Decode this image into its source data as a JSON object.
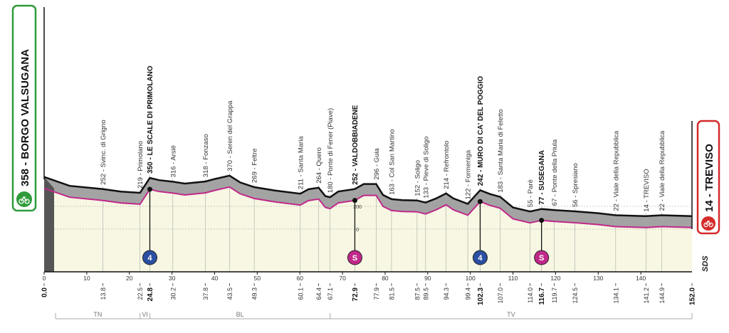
{
  "chart_data": {
    "type": "area",
    "start": {
      "label": "358 - BORGO VALSUGANA",
      "km": 0.0,
      "color": "#2e9c3a"
    },
    "finish": {
      "label": "14 - TREVISO",
      "km": 152.0,
      "color": "#d42b2b"
    },
    "xlim": [
      0,
      152
    ],
    "x_ticks": [
      0,
      10,
      20,
      30,
      40,
      50,
      60,
      70,
      80,
      90,
      100,
      110,
      120,
      130,
      140
    ],
    "altitude_marks": [
      "200",
      "0"
    ],
    "profile": [
      {
        "km": 0,
        "alt": 358
      },
      {
        "km": 6,
        "alt": 280
      },
      {
        "km": 13.8,
        "alt": 252
      },
      {
        "km": 18,
        "alt": 230
      },
      {
        "km": 22.5,
        "alt": 219
      },
      {
        "km": 24.8,
        "alt": 350
      },
      {
        "km": 27,
        "alt": 330
      },
      {
        "km": 30.2,
        "alt": 316
      },
      {
        "km": 33,
        "alt": 300
      },
      {
        "km": 37.8,
        "alt": 318
      },
      {
        "km": 40,
        "alt": 340
      },
      {
        "km": 43.5,
        "alt": 370
      },
      {
        "km": 46,
        "alt": 310
      },
      {
        "km": 49.3,
        "alt": 269
      },
      {
        "km": 54,
        "alt": 240
      },
      {
        "km": 60.1,
        "alt": 211
      },
      {
        "km": 62,
        "alt": 250
      },
      {
        "km": 64.4,
        "alt": 264
      },
      {
        "km": 66,
        "alt": 190
      },
      {
        "km": 67.1,
        "alt": 180
      },
      {
        "km": 69,
        "alt": 230
      },
      {
        "km": 72.9,
        "alt": 252
      },
      {
        "km": 75,
        "alt": 296
      },
      {
        "km": 77.9,
        "alt": 296
      },
      {
        "km": 79.5,
        "alt": 200
      },
      {
        "km": 81.5,
        "alt": 163
      },
      {
        "km": 84,
        "alt": 155
      },
      {
        "km": 87.5,
        "alt": 152
      },
      {
        "km": 89.5,
        "alt": 133
      },
      {
        "km": 92,
        "alt": 170
      },
      {
        "km": 94.3,
        "alt": 214
      },
      {
        "km": 96,
        "alt": 170
      },
      {
        "km": 99.4,
        "alt": 122
      },
      {
        "km": 102.3,
        "alt": 242
      },
      {
        "km": 104.5,
        "alt": 210
      },
      {
        "km": 107.0,
        "alt": 183
      },
      {
        "km": 110,
        "alt": 90
      },
      {
        "km": 114.0,
        "alt": 55
      },
      {
        "km": 116.7,
        "alt": 77
      },
      {
        "km": 119.7,
        "alt": 67
      },
      {
        "km": 124.5,
        "alt": 56
      },
      {
        "km": 130,
        "alt": 40
      },
      {
        "km": 134.1,
        "alt": 22
      },
      {
        "km": 141.2,
        "alt": 14
      },
      {
        "km": 144.9,
        "alt": 22
      },
      {
        "km": 152,
        "alt": 14
      }
    ],
    "waypoints": [
      {
        "km": 13.8,
        "label": "252 - Svinc. di Grigno",
        "bold": false
      },
      {
        "km": 22.5,
        "label": "219 - Primolano",
        "bold": false
      },
      {
        "km": 24.8,
        "label": "350 - LE SCALE DI PRIMOLANO",
        "bold": true
      },
      {
        "km": 30.2,
        "label": "316 - Arsiè",
        "bold": false
      },
      {
        "km": 37.8,
        "label": "318 - Fonzaso",
        "bold": false
      },
      {
        "km": 43.5,
        "label": "370 - Seren del Grappa",
        "bold": false
      },
      {
        "km": 49.3,
        "label": "269 - Feltre",
        "bold": false
      },
      {
        "km": 60.1,
        "label": "211 - Santa Maria",
        "bold": false
      },
      {
        "km": 64.4,
        "label": "264 - Quero",
        "bold": false
      },
      {
        "km": 67.1,
        "label": "180 - Ponte di Fener (Piave)",
        "bold": false
      },
      {
        "km": 72.9,
        "label": "252 - VALDOBBIADENE",
        "bold": true
      },
      {
        "km": 77.9,
        "label": "296 - Guia",
        "bold": false
      },
      {
        "km": 81.5,
        "label": "163 - Col San Martino",
        "bold": false
      },
      {
        "km": 87.5,
        "label": "152 - Soligo",
        "bold": false
      },
      {
        "km": 89.5,
        "label": "133 - Pieve di Soligo",
        "bold": false
      },
      {
        "km": 94.3,
        "label": "214 - Refrontolo",
        "bold": false
      },
      {
        "km": 99.4,
        "label": "122 - Formeniga",
        "bold": false
      },
      {
        "km": 102.3,
        "label": "242 - MURO DI CA' DEL POGGIO",
        "bold": true
      },
      {
        "km": 107.0,
        "label": "183 - Santa Maria di Feletto",
        "bold": false
      },
      {
        "km": 114.0,
        "label": "55 - Parè",
        "bold": false
      },
      {
        "km": 116.7,
        "label": "77 - SUSEGANA",
        "bold": true
      },
      {
        "km": 119.7,
        "label": "67 - Ponte della Priula",
        "bold": false
      },
      {
        "km": 124.5,
        "label": "56 - Spresiano",
        "bold": false
      },
      {
        "km": 134.1,
        "label": "22 - Viale della Repubblica",
        "bold": false
      },
      {
        "km": 141.2,
        "label": "14 - TREVISO",
        "bold": false
      },
      {
        "km": 144.9,
        "label": "22 - Viale della Repubblica",
        "bold": false
      }
    ],
    "km_labels": [
      {
        "km": 0.0,
        "label": "0.0",
        "bold": true
      },
      {
        "km": 13.8,
        "label": "13.8",
        "bold": false
      },
      {
        "km": 22.5,
        "label": "22.5",
        "bold": false
      },
      {
        "km": 24.8,
        "label": "24.8",
        "bold": true
      },
      {
        "km": 30.2,
        "label": "30.2",
        "bold": false
      },
      {
        "km": 37.8,
        "label": "37.8",
        "bold": false
      },
      {
        "km": 43.5,
        "label": "43.5",
        "bold": false
      },
      {
        "km": 49.3,
        "label": "49.3",
        "bold": false
      },
      {
        "km": 60.1,
        "label": "60.1",
        "bold": false
      },
      {
        "km": 64.4,
        "label": "64.4",
        "bold": false
      },
      {
        "km": 67.1,
        "label": "67.1",
        "bold": false
      },
      {
        "km": 72.9,
        "label": "72.9",
        "bold": true
      },
      {
        "km": 77.9,
        "label": "77.9",
        "bold": false
      },
      {
        "km": 81.5,
        "label": "81.5",
        "bold": false
      },
      {
        "km": 87.5,
        "label": "87.5",
        "bold": false
      },
      {
        "km": 89.5,
        "label": "89.5",
        "bold": false
      },
      {
        "km": 94.3,
        "label": "94.3",
        "bold": false
      },
      {
        "km": 99.4,
        "label": "99.4",
        "bold": false
      },
      {
        "km": 102.3,
        "label": "102.3",
        "bold": true
      },
      {
        "km": 107.0,
        "label": "107.0",
        "bold": false
      },
      {
        "km": 114.0,
        "label": "114.0",
        "bold": false
      },
      {
        "km": 116.7,
        "label": "116.7",
        "bold": true
      },
      {
        "km": 119.7,
        "label": "119.7",
        "bold": false
      },
      {
        "km": 124.5,
        "label": "124.5",
        "bold": false
      },
      {
        "km": 134.1,
        "label": "134.1",
        "bold": false
      },
      {
        "km": 141.2,
        "label": "141.2",
        "bold": false
      },
      {
        "km": 144.9,
        "label": "144.9",
        "bold": false
      },
      {
        "km": 152.0,
        "label": "152.0",
        "bold": true
      }
    ],
    "markers": [
      {
        "km": 24.8,
        "type": "climb",
        "label": "4",
        "color": "#2b4fa2"
      },
      {
        "km": 72.9,
        "type": "sprint",
        "label": "S",
        "color": "#c0288a"
      },
      {
        "km": 102.3,
        "type": "climb",
        "label": "4",
        "color": "#2b4fa2"
      },
      {
        "km": 116.7,
        "type": "sprint",
        "label": "S",
        "color": "#c0288a"
      }
    ],
    "regions": [
      {
        "label": "TN",
        "from": 0,
        "to": 22.5
      },
      {
        "label": "VI",
        "from": 22.5,
        "to": 24.8
      },
      {
        "label": "BL",
        "from": 24.8,
        "to": 67.1
      },
      {
        "label": "TV",
        "from": 67.1,
        "to": 152
      }
    ],
    "brand": "SDS",
    "colors": {
      "fill": "#f7f7e3",
      "ridge": "#a3a3a3",
      "road": "#c0288a",
      "profile_line": "#111111"
    }
  }
}
